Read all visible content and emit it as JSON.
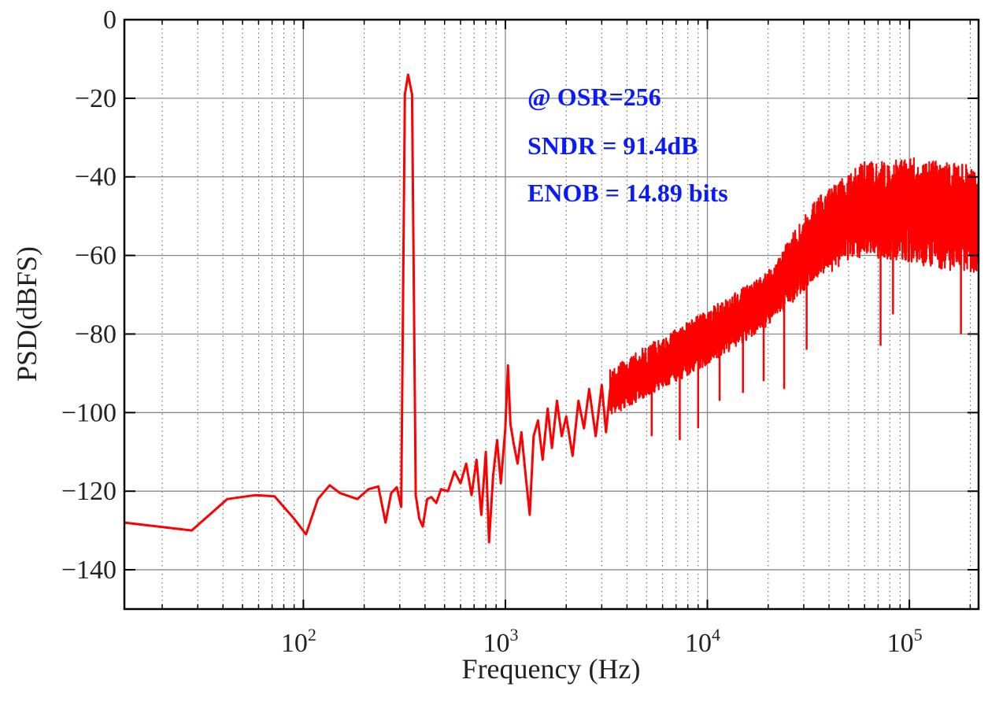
{
  "chart_data": {
    "type": "line",
    "x_scale": "log",
    "xlabel": "Frequency (Hz)",
    "ylabel": "PSD(dBFS)",
    "xlim": [
      13,
      220000
    ],
    "ylim": [
      -150,
      0
    ],
    "grid": true,
    "x_ticks": [
      {
        "value": 100,
        "base": "10",
        "exp": "2"
      },
      {
        "value": 1000,
        "base": "10",
        "exp": "3"
      },
      {
        "value": 10000,
        "base": "10",
        "exp": "4"
      },
      {
        "value": 100000,
        "base": "10",
        "exp": "5"
      }
    ],
    "y_ticks": [
      {
        "value": 0,
        "label": "0"
      },
      {
        "value": -20,
        "label": "−20"
      },
      {
        "value": -40,
        "label": "−40"
      },
      {
        "value": -60,
        "label": "−60"
      },
      {
        "value": -80,
        "label": "−80"
      },
      {
        "value": -100,
        "label": "−100"
      },
      {
        "value": -120,
        "label": "−120"
      },
      {
        "value": -140,
        "label": "−140"
      }
    ],
    "annotations": [
      "@ OSR=256",
      "SNDR = 91.4dB",
      "ENOB = 14.89 bits"
    ],
    "series": [
      {
        "name": "PSD",
        "color": "#ff0000",
        "points": [
          [
            13,
            -128
          ],
          [
            28,
            -130
          ],
          [
            42,
            -122
          ],
          [
            58,
            -121
          ],
          [
            72,
            -121.3
          ],
          [
            90,
            -127
          ],
          [
            103,
            -131
          ],
          [
            118,
            -122
          ],
          [
            135,
            -118.5
          ],
          [
            152,
            -120.5
          ],
          [
            185,
            -122
          ],
          [
            210,
            -119.5
          ],
          [
            235,
            -118.8
          ],
          [
            255,
            -128
          ],
          [
            272,
            -120.5
          ],
          [
            290,
            -119
          ],
          [
            305,
            -124
          ],
          [
            318,
            -19
          ],
          [
            330,
            -14
          ],
          [
            345,
            -19
          ],
          [
            360,
            -121
          ],
          [
            375,
            -127
          ],
          [
            390,
            -129
          ],
          [
            410,
            -122
          ],
          [
            430,
            -121.5
          ],
          [
            455,
            -123
          ],
          [
            480,
            -119.5
          ],
          [
            520,
            -120
          ],
          [
            560,
            -115
          ],
          [
            600,
            -118
          ],
          [
            640,
            -113
          ],
          [
            680,
            -121
          ],
          [
            720,
            -112
          ],
          [
            760,
            -126
          ],
          [
            800,
            -110
          ],
          [
            830,
            -133
          ],
          [
            870,
            -116
          ],
          [
            910,
            -107
          ],
          [
            950,
            -118
          ],
          [
            1000,
            -104
          ],
          [
            1030,
            -88
          ],
          [
            1060,
            -103
          ],
          [
            1100,
            -108
          ],
          [
            1150,
            -113
          ],
          [
            1200,
            -105
          ],
          [
            1260,
            -116
          ],
          [
            1320,
            -126
          ],
          [
            1380,
            -106
          ],
          [
            1450,
            -102
          ],
          [
            1530,
            -112
          ],
          [
            1620,
            -99
          ],
          [
            1700,
            -109
          ],
          [
            1800,
            -97
          ],
          [
            1900,
            -106
          ],
          [
            2000,
            -101
          ],
          [
            2150,
            -111
          ],
          [
            2300,
            -97
          ],
          [
            2450,
            -104
          ],
          [
            2600,
            -94
          ],
          [
            2800,
            -106
          ],
          [
            3000,
            -93
          ],
          [
            3150,
            -105
          ],
          [
            3300,
            -94
          ]
        ],
        "noise_band": [
          {
            "f": 3300,
            "lo": -101,
            "hi": -89
          },
          {
            "f": 5000,
            "lo": -96,
            "hi": -83
          },
          {
            "f": 10000,
            "lo": -88,
            "hi": -74
          },
          {
            "f": 20000,
            "lo": -78,
            "hi": -64
          },
          {
            "f": 35000,
            "lo": -66,
            "hi": -45
          },
          {
            "f": 60000,
            "lo": -60,
            "hi": -36
          },
          {
            "f": 100000,
            "lo": -62,
            "hi": -35
          },
          {
            "f": 220000,
            "lo": -65,
            "hi": -37
          }
        ],
        "spikes": [
          {
            "f": 5300,
            "v": -106
          },
          {
            "f": 7300,
            "v": -107
          },
          {
            "f": 9000,
            "v": -104
          },
          {
            "f": 11500,
            "v": -97
          },
          {
            "f": 15000,
            "v": -95
          },
          {
            "f": 19000,
            "v": -92
          },
          {
            "f": 24000,
            "v": -94
          },
          {
            "f": 31000,
            "v": -84
          },
          {
            "f": 72000,
            "v": -83
          },
          {
            "f": 83000,
            "v": -75
          },
          {
            "f": 180000,
            "v": -80
          }
        ]
      }
    ]
  }
}
